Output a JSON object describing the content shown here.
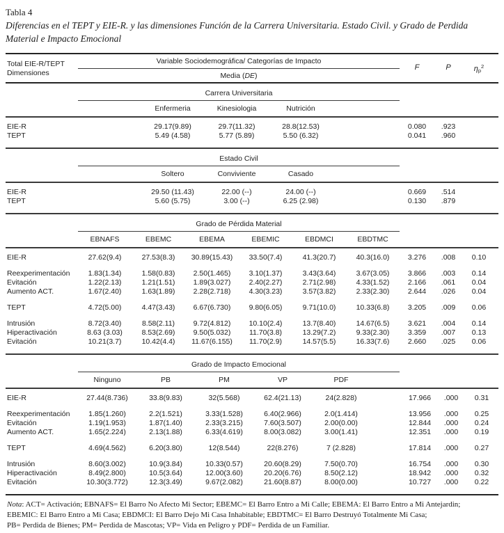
{
  "page": {
    "table_label": "Tabla 4",
    "title": "Diferencias en el TEPT y EIE-R. y las dimensiones Función de la Carrera Universitaria. Estado Civil. y Grado de Perdida Material e Impacto Emocional"
  },
  "header": {
    "stub_line1": "Total EIE-R/TEPT",
    "stub_line2": "Dimensiones",
    "group": "Variable Sociodemográfica/ Categorías de Impacto",
    "subgroup_prefix": "Media (",
    "subgroup_em": "DE",
    "subgroup_suffix": ")",
    "f": "F",
    "p": "P",
    "eta_symbol": "η",
    "eta_sub": "p",
    "eta_sup": "2"
  },
  "sections": [
    {
      "title": "Carrera Universitaria",
      "layout": "t3",
      "columns": [
        "Enfermeria",
        "Kinesiologia",
        "Nutrición"
      ],
      "groups": [
        {
          "rows": [
            {
              "label": "EIE-R",
              "values": [
                "29.17(9.89)",
                "29.7(11.32)",
                "28.8(12.53)"
              ],
              "f": "0.080",
              "p": ".923",
              "eta": ""
            },
            {
              "label": "TEPT",
              "values": [
                "5.49 (4.58)",
                "5.77 (5.89)",
                "5.50 (6.32)"
              ],
              "f": "0.041",
              "p": ".960",
              "eta": ""
            }
          ]
        }
      ]
    },
    {
      "title": "Estado Civil",
      "layout": "t3",
      "columns": [
        "Soltero",
        "Conviviente",
        "Casado"
      ],
      "groups": [
        {
          "rows": [
            {
              "label": "EIE-R",
              "values": [
                "29.50 (11.43)",
                "22.00 (--)",
                "24.00 (--)"
              ],
              "f": "0.669",
              "p": ".514",
              "eta": ""
            },
            {
              "label": "TEPT",
              "values": [
                "5.60 (5.75)",
                "3.00 (--)",
                "6.25 (2.98)"
              ],
              "f": "0.130",
              "p": ".879",
              "eta": ""
            }
          ]
        }
      ]
    },
    {
      "title": "Grado de Pérdida Material",
      "layout": "t6",
      "columns": [
        "EBNAFS",
        "EBEMC",
        "EBEMA",
        "EBEMIC",
        "EBDMCI",
        "EBDTMC"
      ],
      "groups": [
        {
          "rows": [
            {
              "label": "EIE-R",
              "values": [
                "27.62(9.4)",
                "27.53(8.3)",
                "30.89(15.43)",
                "33.50(7.4)",
                "41.3(20.7)",
                "40.3(16.0)"
              ],
              "f": "3.276",
              "p": ".008",
              "eta": "0.10"
            }
          ]
        },
        {
          "rows": [
            {
              "label": "Reexperimentación",
              "values": [
                "1.83(1.34)",
                "1.58(0.83)",
                "2.50(1.465)",
                "3.10(1.37)",
                "3.43(3.64)",
                "3.67(3.05)"
              ],
              "f": "3.866",
              "p": ".003",
              "eta": "0.14"
            },
            {
              "label": "Evitación",
              "values": [
                "1.22(2.13)",
                "1.21(1.51)",
                "1.89(3.027)",
                "2.40(2.27)",
                "2.71(2.98)",
                "4.33(1.52)"
              ],
              "f": "2.166",
              "p": ".061",
              "eta": "0.04"
            },
            {
              "label": "Aumento ACT.",
              "values": [
                "1.67(2.40)",
                "1.63(1.89)",
                "2.28(2.718)",
                "4.30(3.23)",
                "3.57(3.82)",
                "2.33(2.30)"
              ],
              "f": "2.644",
              "p": ".026",
              "eta": "0.04"
            }
          ]
        },
        {
          "rows": [
            {
              "label": "TEPT",
              "values": [
                "4.72(5.00)",
                "4.47(3.43)",
                "6.67(6.730)",
                "9.80(6.05)",
                "9.71(10.0)",
                "10.33(6.8)"
              ],
              "f": "3.205",
              "p": ".009",
              "eta": "0.06"
            }
          ]
        },
        {
          "rows": [
            {
              "label": "Intrusión",
              "values": [
                "8.72(3.40)",
                "8.58(2.11)",
                "9.72(4.812)",
                "10.10(2.4)",
                "13.7(8.40)",
                "14.67(6.5)"
              ],
              "f": "3.621",
              "p": ".004",
              "eta": "0.14"
            },
            {
              "label": "Hiperactivación",
              "values": [
                "8.63 (3.03)",
                "8.53(2.69)",
                "9.50(5.032)",
                "11.70(3.8)",
                "13.29(7.2)",
                "9.33(2.30)"
              ],
              "f": "3.359",
              "p": ".007",
              "eta": "0.13"
            },
            {
              "label": "Evitación",
              "values": [
                "10.21(3.7)",
                "10.42(4.4)",
                "11.67(6.155)",
                "11.70(2.9)",
                "14.57(5.5)",
                "16.33(7.6)"
              ],
              "f": "2.660",
              "p": ".025",
              "eta": "0.06"
            }
          ]
        }
      ]
    },
    {
      "title": "Grado de Impacto Emocional",
      "layout": "t5",
      "columns": [
        "Ninguno",
        "PB",
        "PM",
        "VP",
        "PDF"
      ],
      "groups": [
        {
          "rows": [
            {
              "label": "EIE-R",
              "values": [
                "27.44(8.736)",
                "33.8(9.83)",
                "32(5.568)",
                "62.4(21.13)",
                "24(2.828)"
              ],
              "f": "17.966",
              "p": ".000",
              "eta": "0.31"
            }
          ]
        },
        {
          "rows": [
            {
              "label": "Reexperimentación",
              "values": [
                "1.85(1.260)",
                "2.2(1.521)",
                "3.33(1.528)",
                "6.40(2.966)",
                "2.0(1.414)"
              ],
              "f": "13.956",
              "p": ".000",
              "eta": "0.25"
            },
            {
              "label": "Evitación",
              "values": [
                "1.19(1.953)",
                "1.87(1.40)",
                "2.33(3.215)",
                "7.60(3.507)",
                "2.00(0.00)"
              ],
              "f": "12.844",
              "p": ".000",
              "eta": "0.24"
            },
            {
              "label": "Aumento ACT.",
              "values": [
                "1.65(2.224)",
                "2.13(1.88)",
                "6.33(4.619)",
                "8.00(3.082)",
                "3.00(1.41)"
              ],
              "f": "12.351",
              "p": ".000",
              "eta": "0.19"
            }
          ]
        },
        {
          "rows": [
            {
              "label": "TEPT",
              "values": [
                "4.69(4.562)",
                "6.20(3.80)",
                "12(8.544)",
                "22(8.276)",
                "7 (2.828)"
              ],
              "f": "17.814",
              "p": ".000",
              "eta": "0.27"
            }
          ]
        },
        {
          "rows": [
            {
              "label": "Intrusión",
              "values": [
                "8.60(3.002)",
                "10.9(3.84)",
                "10.33(0.57)",
                "20.60(8.29)",
                "7.50(0.70)"
              ],
              "f": "16.754",
              "p": ".000",
              "eta": "0.30"
            },
            {
              "label": "Hiperactivación",
              "values": [
                "8.49(2.800)",
                "10.5(3.64)",
                "12.00(3.60)",
                "20.20(6.76)",
                "8.50(2.12)"
              ],
              "f": "18.942",
              "p": ".000",
              "eta": "0.32"
            },
            {
              "label": "Evitación",
              "values": [
                "10.30(3.772)",
                "12.3(3.49)",
                "9.67(2.082)",
                "21.60(8.87)",
                "8.00(0.00)"
              ],
              "f": "10.727",
              "p": ".000",
              "eta": "0.22"
            }
          ]
        }
      ]
    }
  ],
  "footnote": {
    "label": "Nota",
    "line1": ": ACT= Activación; EBNAFS= El Barro No Afecto Mi Sector; EBEMC= El Barro Entro a Mi Calle; EBEMA: El Barro Entro a Mi Antejardin;",
    "line2": "EBEMIC: El Barro Entro a Mi Casa; EBDMCI: El Barro Dejo Mi Casa Inhabitable; EBDTMC= El Barro Destruyó Totalmente Mi Casa;",
    "line3": "PB= Perdida de Bienes; PM= Perdida de Mascotas; VP= Vida en Peligro y PDF= Perdida de un Familiar."
  }
}
